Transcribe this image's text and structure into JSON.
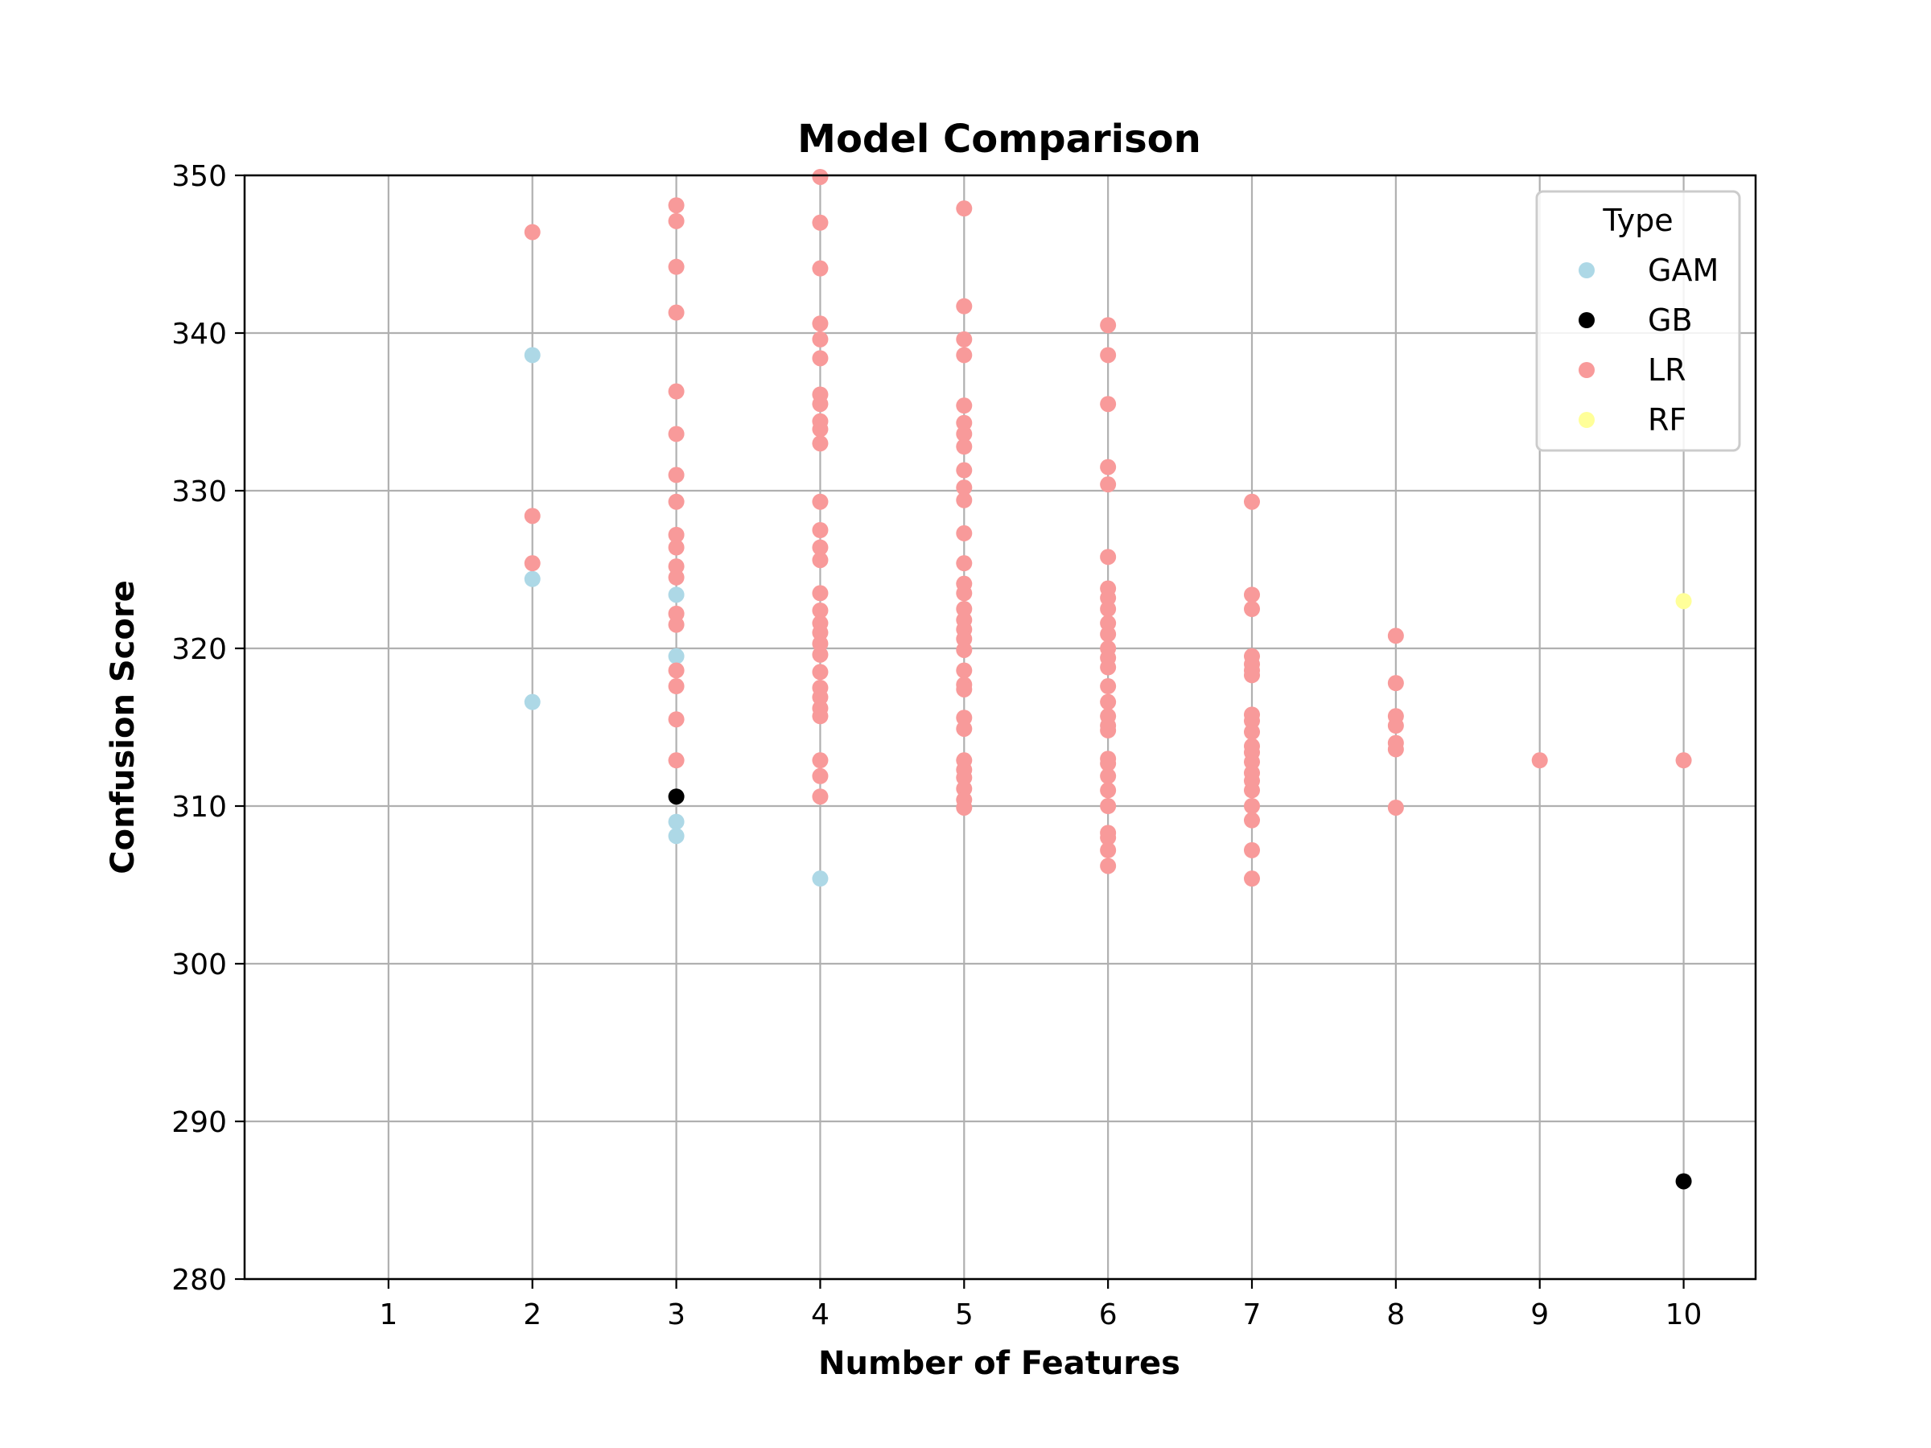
{
  "chart_data": {
    "type": "scatter",
    "title": "Model Comparison",
    "xlabel": "Number of Features",
    "ylabel": "Confusion Score",
    "xlim": [
      0,
      10.5
    ],
    "ylim": [
      280,
      350
    ],
    "xticks": [
      "1",
      "2",
      "3",
      "4",
      "5",
      "6",
      "7",
      "8",
      "9",
      "10"
    ],
    "yticks": [
      "280",
      "290",
      "300",
      "310",
      "320",
      "330",
      "340",
      "350"
    ],
    "grid": true,
    "legend": {
      "title": "Type",
      "placement": "top-right"
    },
    "series": [
      {
        "name": "GAM",
        "color": "#add8e6",
        "points": [
          [
            2,
            338.6
          ],
          [
            2,
            324.4
          ],
          [
            2,
            316.6
          ],
          [
            3,
            323.4
          ],
          [
            3,
            319.5
          ],
          [
            3,
            309.0
          ],
          [
            3,
            308.1
          ],
          [
            4,
            305.4
          ]
        ]
      },
      {
        "name": "GB",
        "color": "#000000",
        "points": [
          [
            3,
            310.6
          ],
          [
            10,
            286.2
          ]
        ]
      },
      {
        "name": "LR",
        "color": "#f89a9a",
        "points": [
          [
            2,
            346.4
          ],
          [
            2,
            328.4
          ],
          [
            2,
            325.4
          ],
          [
            3,
            348.1
          ],
          [
            3,
            347.1
          ],
          [
            3,
            344.2
          ],
          [
            3,
            341.3
          ],
          [
            3,
            336.3
          ],
          [
            3,
            333.6
          ],
          [
            3,
            331.0
          ],
          [
            3,
            329.3
          ],
          [
            3,
            327.2
          ],
          [
            3,
            326.4
          ],
          [
            3,
            325.2
          ],
          [
            3,
            324.5
          ],
          [
            3,
            322.2
          ],
          [
            3,
            321.5
          ],
          [
            3,
            318.6
          ],
          [
            3,
            317.6
          ],
          [
            3,
            315.5
          ],
          [
            3,
            312.9
          ],
          [
            4,
            349.9
          ],
          [
            4,
            347.0
          ],
          [
            4,
            344.1
          ],
          [
            4,
            340.6
          ],
          [
            4,
            339.6
          ],
          [
            4,
            338.4
          ],
          [
            4,
            336.1
          ],
          [
            4,
            335.5
          ],
          [
            4,
            334.4
          ],
          [
            4,
            333.9
          ],
          [
            4,
            333.0
          ],
          [
            4,
            329.3
          ],
          [
            4,
            327.5
          ],
          [
            4,
            326.4
          ],
          [
            4,
            325.6
          ],
          [
            4,
            323.5
          ],
          [
            4,
            322.4
          ],
          [
            4,
            321.6
          ],
          [
            4,
            321.0
          ],
          [
            4,
            320.3
          ],
          [
            4,
            319.6
          ],
          [
            4,
            318.5
          ],
          [
            4,
            317.5
          ],
          [
            4,
            316.9
          ],
          [
            4,
            316.2
          ],
          [
            4,
            315.7
          ],
          [
            4,
            312.9
          ],
          [
            4,
            311.9
          ],
          [
            4,
            310.6
          ],
          [
            5,
            347.9
          ],
          [
            5,
            341.7
          ],
          [
            5,
            339.6
          ],
          [
            5,
            338.6
          ],
          [
            5,
            335.4
          ],
          [
            5,
            334.3
          ],
          [
            5,
            333.6
          ],
          [
            5,
            332.8
          ],
          [
            5,
            331.3
          ],
          [
            5,
            330.2
          ],
          [
            5,
            329.4
          ],
          [
            5,
            327.3
          ],
          [
            5,
            325.4
          ],
          [
            5,
            324.1
          ],
          [
            5,
            323.5
          ],
          [
            5,
            322.5
          ],
          [
            5,
            321.8
          ],
          [
            5,
            321.2
          ],
          [
            5,
            320.6
          ],
          [
            5,
            319.9
          ],
          [
            5,
            318.6
          ],
          [
            5,
            317.7
          ],
          [
            5,
            317.4
          ],
          [
            5,
            315.6
          ],
          [
            5,
            314.9
          ],
          [
            5,
            312.9
          ],
          [
            5,
            312.3
          ],
          [
            5,
            311.8
          ],
          [
            5,
            311.1
          ],
          [
            5,
            310.4
          ],
          [
            5,
            309.9
          ],
          [
            6,
            340.5
          ],
          [
            6,
            338.6
          ],
          [
            6,
            335.5
          ],
          [
            6,
            331.5
          ],
          [
            6,
            330.4
          ],
          [
            6,
            325.8
          ],
          [
            6,
            323.8
          ],
          [
            6,
            323.2
          ],
          [
            6,
            322.5
          ],
          [
            6,
            321.6
          ],
          [
            6,
            320.9
          ],
          [
            6,
            320.0
          ],
          [
            6,
            319.4
          ],
          [
            6,
            318.8
          ],
          [
            6,
            317.6
          ],
          [
            6,
            316.6
          ],
          [
            6,
            315.7
          ],
          [
            6,
            315.1
          ],
          [
            6,
            314.8
          ],
          [
            6,
            313.0
          ],
          [
            6,
            312.7
          ],
          [
            6,
            311.9
          ],
          [
            6,
            311.0
          ],
          [
            6,
            310.0
          ],
          [
            6,
            308.3
          ],
          [
            6,
            308.0
          ],
          [
            6,
            307.2
          ],
          [
            6,
            306.2
          ],
          [
            7,
            329.3
          ],
          [
            7,
            323.4
          ],
          [
            7,
            322.5
          ],
          [
            7,
            319.5
          ],
          [
            7,
            319.0
          ],
          [
            7,
            318.6
          ],
          [
            7,
            318.3
          ],
          [
            7,
            315.8
          ],
          [
            7,
            315.4
          ],
          [
            7,
            314.7
          ],
          [
            7,
            313.8
          ],
          [
            7,
            313.4
          ],
          [
            7,
            312.8
          ],
          [
            7,
            312.1
          ],
          [
            7,
            311.6
          ],
          [
            7,
            311.0
          ],
          [
            7,
            310.0
          ],
          [
            7,
            309.1
          ],
          [
            7,
            307.2
          ],
          [
            7,
            305.4
          ],
          [
            8,
            320.8
          ],
          [
            8,
            317.8
          ],
          [
            8,
            315.7
          ],
          [
            8,
            315.1
          ],
          [
            8,
            314.0
          ],
          [
            8,
            313.6
          ],
          [
            8,
            309.9
          ],
          [
            9,
            312.9
          ],
          [
            10,
            312.9
          ]
        ]
      },
      {
        "name": "RF",
        "color": "#ffff99",
        "points": [
          [
            10,
            323.0
          ]
        ]
      }
    ]
  }
}
